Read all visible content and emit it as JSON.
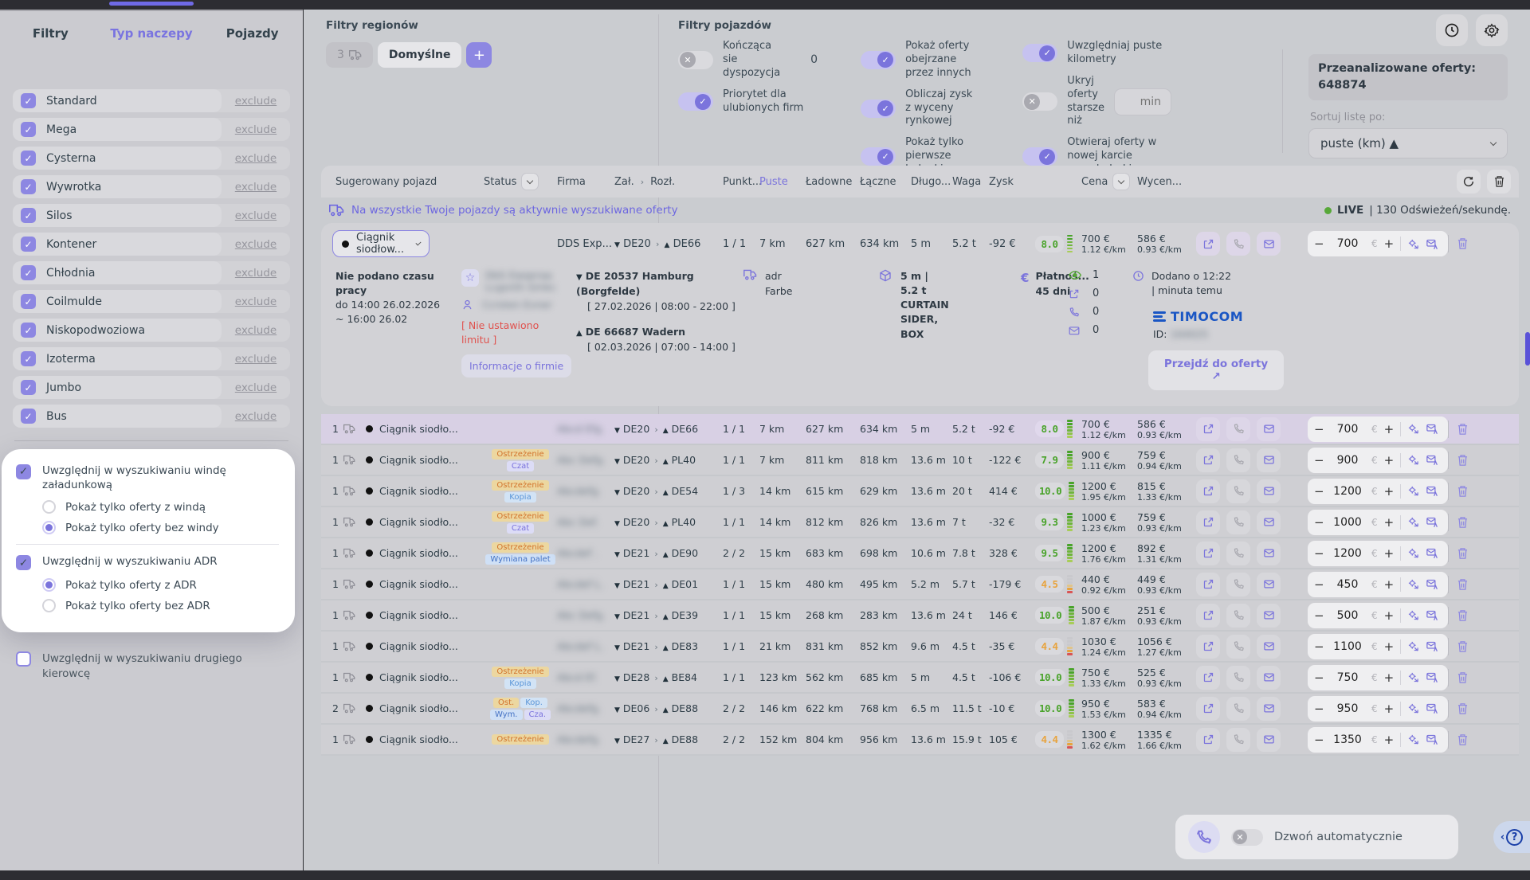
{
  "sidebar": {
    "tabs": [
      {
        "label": "Filtry",
        "active": false
      },
      {
        "label": "Typ naczepy",
        "active": true
      },
      {
        "label": "Pojazdy",
        "active": false
      }
    ],
    "exclude_label": "exclude",
    "trailer_types": [
      "Standard",
      "Mega",
      "Cysterna",
      "Wywrotka",
      "Silos",
      "Kontener",
      "Chłodnia",
      "Coilmulde",
      "Niskopodwoziowa",
      "Izoterma",
      "Jumbo",
      "Bus"
    ],
    "popup": {
      "groups": [
        {
          "title": "Uwzględnij w wyszukiwaniu windę załadunkową",
          "checked": true,
          "options": [
            {
              "label": "Pokaż tylko oferty z windą",
              "selected": false
            },
            {
              "label": "Pokaż tylko oferty bez windy",
              "selected": true
            }
          ]
        },
        {
          "title": "Uwzględnij w wyszukiwaniu ADR",
          "checked": true,
          "options": [
            {
              "label": "Pokaż tylko oferty z ADR",
              "selected": true
            },
            {
              "label": "Pokaż tylko oferty bez ADR",
              "selected": false
            }
          ]
        }
      ]
    },
    "second_driver": {
      "label": "Uwzględnij w wyszukiwaniu drugiego kierowcę",
      "checked": false
    }
  },
  "region_filters": {
    "title": "Filtry regionów",
    "count_chip": "3",
    "active_chip": "Domyślne",
    "add_label": "+"
  },
  "vehicle_filters": {
    "title": "Filtry pojazdów",
    "toggles": [
      {
        "label": "Kończąca sie dyspozycja",
        "on": false,
        "value": "0"
      },
      {
        "label": "Priorytet dla ulubionych firm",
        "on": true
      },
      {
        "label": "Pokaż oferty obejrzane przez innych",
        "on": true
      },
      {
        "label": "Obliczaj zysk z wyceny rynkowej",
        "on": true
      },
      {
        "label": "Pokaż tylko pierwsze ładunki",
        "on": true
      },
      {
        "label": "Uwzględniaj puste kilometry",
        "on": true
      },
      {
        "label": "Ukryj oferty starsze niż",
        "on": false,
        "input_placeholder": "min"
      },
      {
        "label": "Otwieraj oferty w nowej karcie przeglądarki.",
        "on": true
      }
    ]
  },
  "analyzed": {
    "label": "Przeanalizowane oferty:",
    "value": "648874"
  },
  "sort": {
    "label": "Sortuj listę po:",
    "value": "puste (km) ▲"
  },
  "table": {
    "headers": {
      "vehicle": "Sugerowany pojazd",
      "status": "Status",
      "firm": "Firma",
      "zal": "Zał.",
      "rozl": "Rozł.",
      "punkt": "Punkt...",
      "puste": "Puste",
      "ladowne": "Ładowne",
      "laczne": "Łączne",
      "dlugo": "Długo...",
      "waga": "Waga",
      "zysk": "Zysk",
      "cena": "Cena",
      "wycena": "Wycen..."
    },
    "banner": {
      "text": "Na wszystkie Twoje pojazdy są aktywnie wyszukiwane oferty",
      "live": "LIVE",
      "rate": "| 130 Odświeżeń/sekundę."
    },
    "rows": [
      {
        "count": "1",
        "vehicle": "Ciągnik siodło...",
        "badges": [],
        "firm_mask": "Abcd Efg.",
        "from": "DE20",
        "to": "DE66",
        "pts": "1 / 1",
        "puste": "7 km",
        "ladowne": "627 km",
        "laczne": "634 km",
        "dlugo": "5 m",
        "waga": "5.2 t",
        "zysk": "-92 €",
        "score": "8.0",
        "score_level": "good",
        "cena": "700 €",
        "cena_km": "1.12 €/km",
        "wycena": "586 €",
        "wycena_km": "0.93 €/km",
        "offer": "700",
        "selected": true
      },
      {
        "count": "1",
        "vehicle": "Ciągnik siodło...",
        "badges": [
          {
            "label": "Ostrzeżenie",
            "type": "warning"
          },
          {
            "label": "Czat",
            "type": "chat"
          }
        ],
        "firm_mask": "Abc Defg.",
        "from": "DE20",
        "to": "PL40",
        "pts": "1 / 1",
        "puste": "7 km",
        "ladowne": "811 km",
        "laczne": "818 km",
        "dlugo": "13.6 m",
        "waga": "10 t",
        "zysk": "-122 €",
        "score": "7.9",
        "score_level": "good",
        "cena": "900 €",
        "cena_km": "1.11 €/km",
        "wycena": "759 €",
        "wycena_km": "0.94 €/km",
        "offer": "900",
        "selected": false
      },
      {
        "count": "1",
        "vehicle": "Ciągnik siodło...",
        "badges": [
          {
            "label": "Ostrzeżenie",
            "type": "warning"
          },
          {
            "label": "Kopia",
            "type": "copy"
          }
        ],
        "firm_mask": "Abcdefg.",
        "from": "DE20",
        "to": "DE54",
        "pts": "1 / 3",
        "puste": "14 km",
        "ladowne": "615 km",
        "laczne": "629 km",
        "dlugo": "13.6 m",
        "waga": "20 t",
        "zysk": "414 €",
        "score": "10.0",
        "score_level": "good",
        "cena": "1200 €",
        "cena_km": "1.95 €/km",
        "wycena": "815 €",
        "wycena_km": "1.33 €/km",
        "offer": "1200",
        "selected": false
      },
      {
        "count": "1",
        "vehicle": "Ciągnik siodło...",
        "badges": [
          {
            "label": "Ostrzeżenie",
            "type": "warning"
          },
          {
            "label": "Czat",
            "type": "chat"
          }
        ],
        "firm_mask": "Abc Def.",
        "from": "DE20",
        "to": "PL40",
        "pts": "1 / 1",
        "puste": "14 km",
        "ladowne": "812 km",
        "laczne": "826 km",
        "dlugo": "13.6 m",
        "waga": "7 t",
        "zysk": "-32 €",
        "score": "9.3",
        "score_level": "good",
        "cena": "1000 €",
        "cena_km": "1.23 €/km",
        "wycena": "759 €",
        "wycena_km": "0.93 €/km",
        "offer": "1000",
        "selected": false
      },
      {
        "count": "1",
        "vehicle": "Ciągnik siodło...",
        "badges": [
          {
            "label": "Ostrzeżenie",
            "type": "warning"
          },
          {
            "label": "Wymiana palet",
            "type": "pallet"
          }
        ],
        "firm_mask": "Abcdef .",
        "from": "DE21",
        "to": "DE90",
        "pts": "2 / 2",
        "puste": "15 km",
        "ladowne": "683 km",
        "laczne": "698 km",
        "dlugo": "10.6 m",
        "waga": "7.8 t",
        "zysk": "328 €",
        "score": "9.5",
        "score_level": "good",
        "cena": "1200 €",
        "cena_km": "1.76 €/km",
        "wycena": "892 €",
        "wycena_km": "1.31 €/km",
        "offer": "1200",
        "selected": false
      },
      {
        "count": "1",
        "vehicle": "Ciągnik siodło...",
        "badges": [],
        "firm_mask": "Abcdef L.",
        "from": "DE21",
        "to": "DE01",
        "pts": "1 / 1",
        "puste": "15 km",
        "ladowne": "480 km",
        "laczne": "495 km",
        "dlugo": "5.2 m",
        "waga": "5.7 t",
        "zysk": "-179 €",
        "score": "4.5",
        "score_level": "bad",
        "cena": "440 €",
        "cena_km": "0.92 €/km",
        "wycena": "449 €",
        "wycena_km": "0.93 €/km",
        "offer": "450",
        "selected": false
      },
      {
        "count": "1",
        "vehicle": "Ciągnik siodło...",
        "badges": [],
        "firm_mask": "Abc Defg.",
        "from": "DE21",
        "to": "DE39",
        "pts": "1 / 1",
        "puste": "15 km",
        "ladowne": "268 km",
        "laczne": "283 km",
        "dlugo": "13.6 m",
        "waga": "24 t",
        "zysk": "146 €",
        "score": "10.0",
        "score_level": "good",
        "cena": "500 €",
        "cena_km": "1.87 €/km",
        "wycena": "251 €",
        "wycena_km": "0.93 €/km",
        "offer": "500",
        "selected": false
      },
      {
        "count": "1",
        "vehicle": "Ciągnik siodło...",
        "badges": [],
        "firm_mask": "Abcdef L.",
        "from": "DE21",
        "to": "DE83",
        "pts": "1 / 1",
        "puste": "21 km",
        "ladowne": "831 km",
        "laczne": "852 km",
        "dlugo": "9.6 m",
        "waga": "4.5 t",
        "zysk": "-35 €",
        "score": "4.4",
        "score_level": "bad",
        "cena": "1030 €",
        "cena_km": "1.24 €/km",
        "wycena": "1056 €",
        "wycena_km": "1.27 €/km",
        "offer": "1100",
        "selected": false
      },
      {
        "count": "1",
        "vehicle": "Ciągnik siodło...",
        "badges": [
          {
            "label": "Ostrzeżenie",
            "type": "warning"
          },
          {
            "label": "Kopia",
            "type": "copy"
          }
        ],
        "firm_mask": "Abcd Ef.",
        "from": "DE28",
        "to": "BE84",
        "pts": "1 / 1",
        "puste": "123 km",
        "ladowne": "562 km",
        "laczne": "685 km",
        "dlugo": "5 m",
        "waga": "4.5 t",
        "zysk": "-106 €",
        "score": "10.0",
        "score_level": "good",
        "cena": "750 €",
        "cena_km": "1.33 €/km",
        "wycena": "525 €",
        "wycena_km": "0.93 €/km",
        "offer": "750",
        "selected": false
      },
      {
        "count": "2",
        "vehicle": "Ciągnik siodło...",
        "badges": [
          {
            "label": "Ost.",
            "type": "warning"
          },
          {
            "label": "Kop.",
            "type": "copy"
          },
          {
            "label": "Wym.",
            "type": "pallet"
          },
          {
            "label": "Cza.",
            "type": "chat"
          }
        ],
        "firm_mask": "Abcdefg.",
        "from": "DE06",
        "to": "DE88",
        "pts": "2 / 2",
        "puste": "146 km",
        "ladowne": "622 km",
        "laczne": "768 km",
        "dlugo": "6.5 m",
        "waga": "11.5 t",
        "zysk": "-10 €",
        "score": "10.0",
        "score_level": "good",
        "cena": "950 €",
        "cena_km": "1.53 €/km",
        "wycena": "583 €",
        "wycena_km": "0.94 €/km",
        "offer": "950",
        "selected": false
      },
      {
        "count": "1",
        "vehicle": "Ciągnik siodło...",
        "badges": [
          {
            "label": "Ostrzeżenie",
            "type": "warning"
          }
        ],
        "firm_mask": "Abcdefg.",
        "from": "DE27",
        "to": "DE88",
        "pts": "2 / 2",
        "puste": "152 km",
        "ladowne": "804 km",
        "laczne": "956 km",
        "dlugo": "13.6 m",
        "waga": "15.9 t",
        "zysk": "105 €",
        "score": "4.4",
        "score_level": "bad",
        "cena": "1300 €",
        "cena_km": "1.62 €/km",
        "wycena": "1335 €",
        "wycena_km": "1.66 €/km",
        "offer": "1350",
        "selected": false
      }
    ]
  },
  "expanded": {
    "vehicle_pill": "Ciągnik siodłow...",
    "firm_display": "DDS Exp...",
    "work_time": {
      "l1": "Nie podano czasu pracy",
      "l2": "do 14:00 26.02.2026",
      "l3": "~ 16:00 26.02"
    },
    "company_mask": {
      "l1": "DbS Ewqeraa",
      "l2": "Lcgsnth Gmkc"
    },
    "contact_mask": "Ccrsten Evner",
    "limit_text": "[ Nie ustawiono limitu ]",
    "company_info_button": "Informacje o firmie",
    "loading": {
      "place": "DE 20537 Hamburg (Borgfelde)",
      "time": "[ 27.02.2026 | 08:00 - 22:00 ]"
    },
    "unloading": {
      "place": "DE 66687 Wadern",
      "time": "[ 02.03.2026 | 07:00 - 14:00 ]"
    },
    "adr": {
      "l1": "adr",
      "l2": "Farbe"
    },
    "cargo": {
      "l1": "5 m |",
      "l2": "5.2 t",
      "l3": "CURTAIN",
      "l4": "SIDER,",
      "l5": "BOX"
    },
    "payment": {
      "l1": "Płatnoś...",
      "l2": "45 dni"
    },
    "stats": {
      "views": "1",
      "shares": "0",
      "calls": "0",
      "mails": "0"
    },
    "added": {
      "l1": "Dodano o 12:22",
      "l2": "| minuta temu"
    },
    "brand": "TIMOCOM",
    "id_label": "ID:",
    "id_mask": "164025",
    "goto_offer": "Przejdź do oferty ↗"
  },
  "bottom": {
    "auto_call_label": "Dzwoń automatycznie"
  }
}
